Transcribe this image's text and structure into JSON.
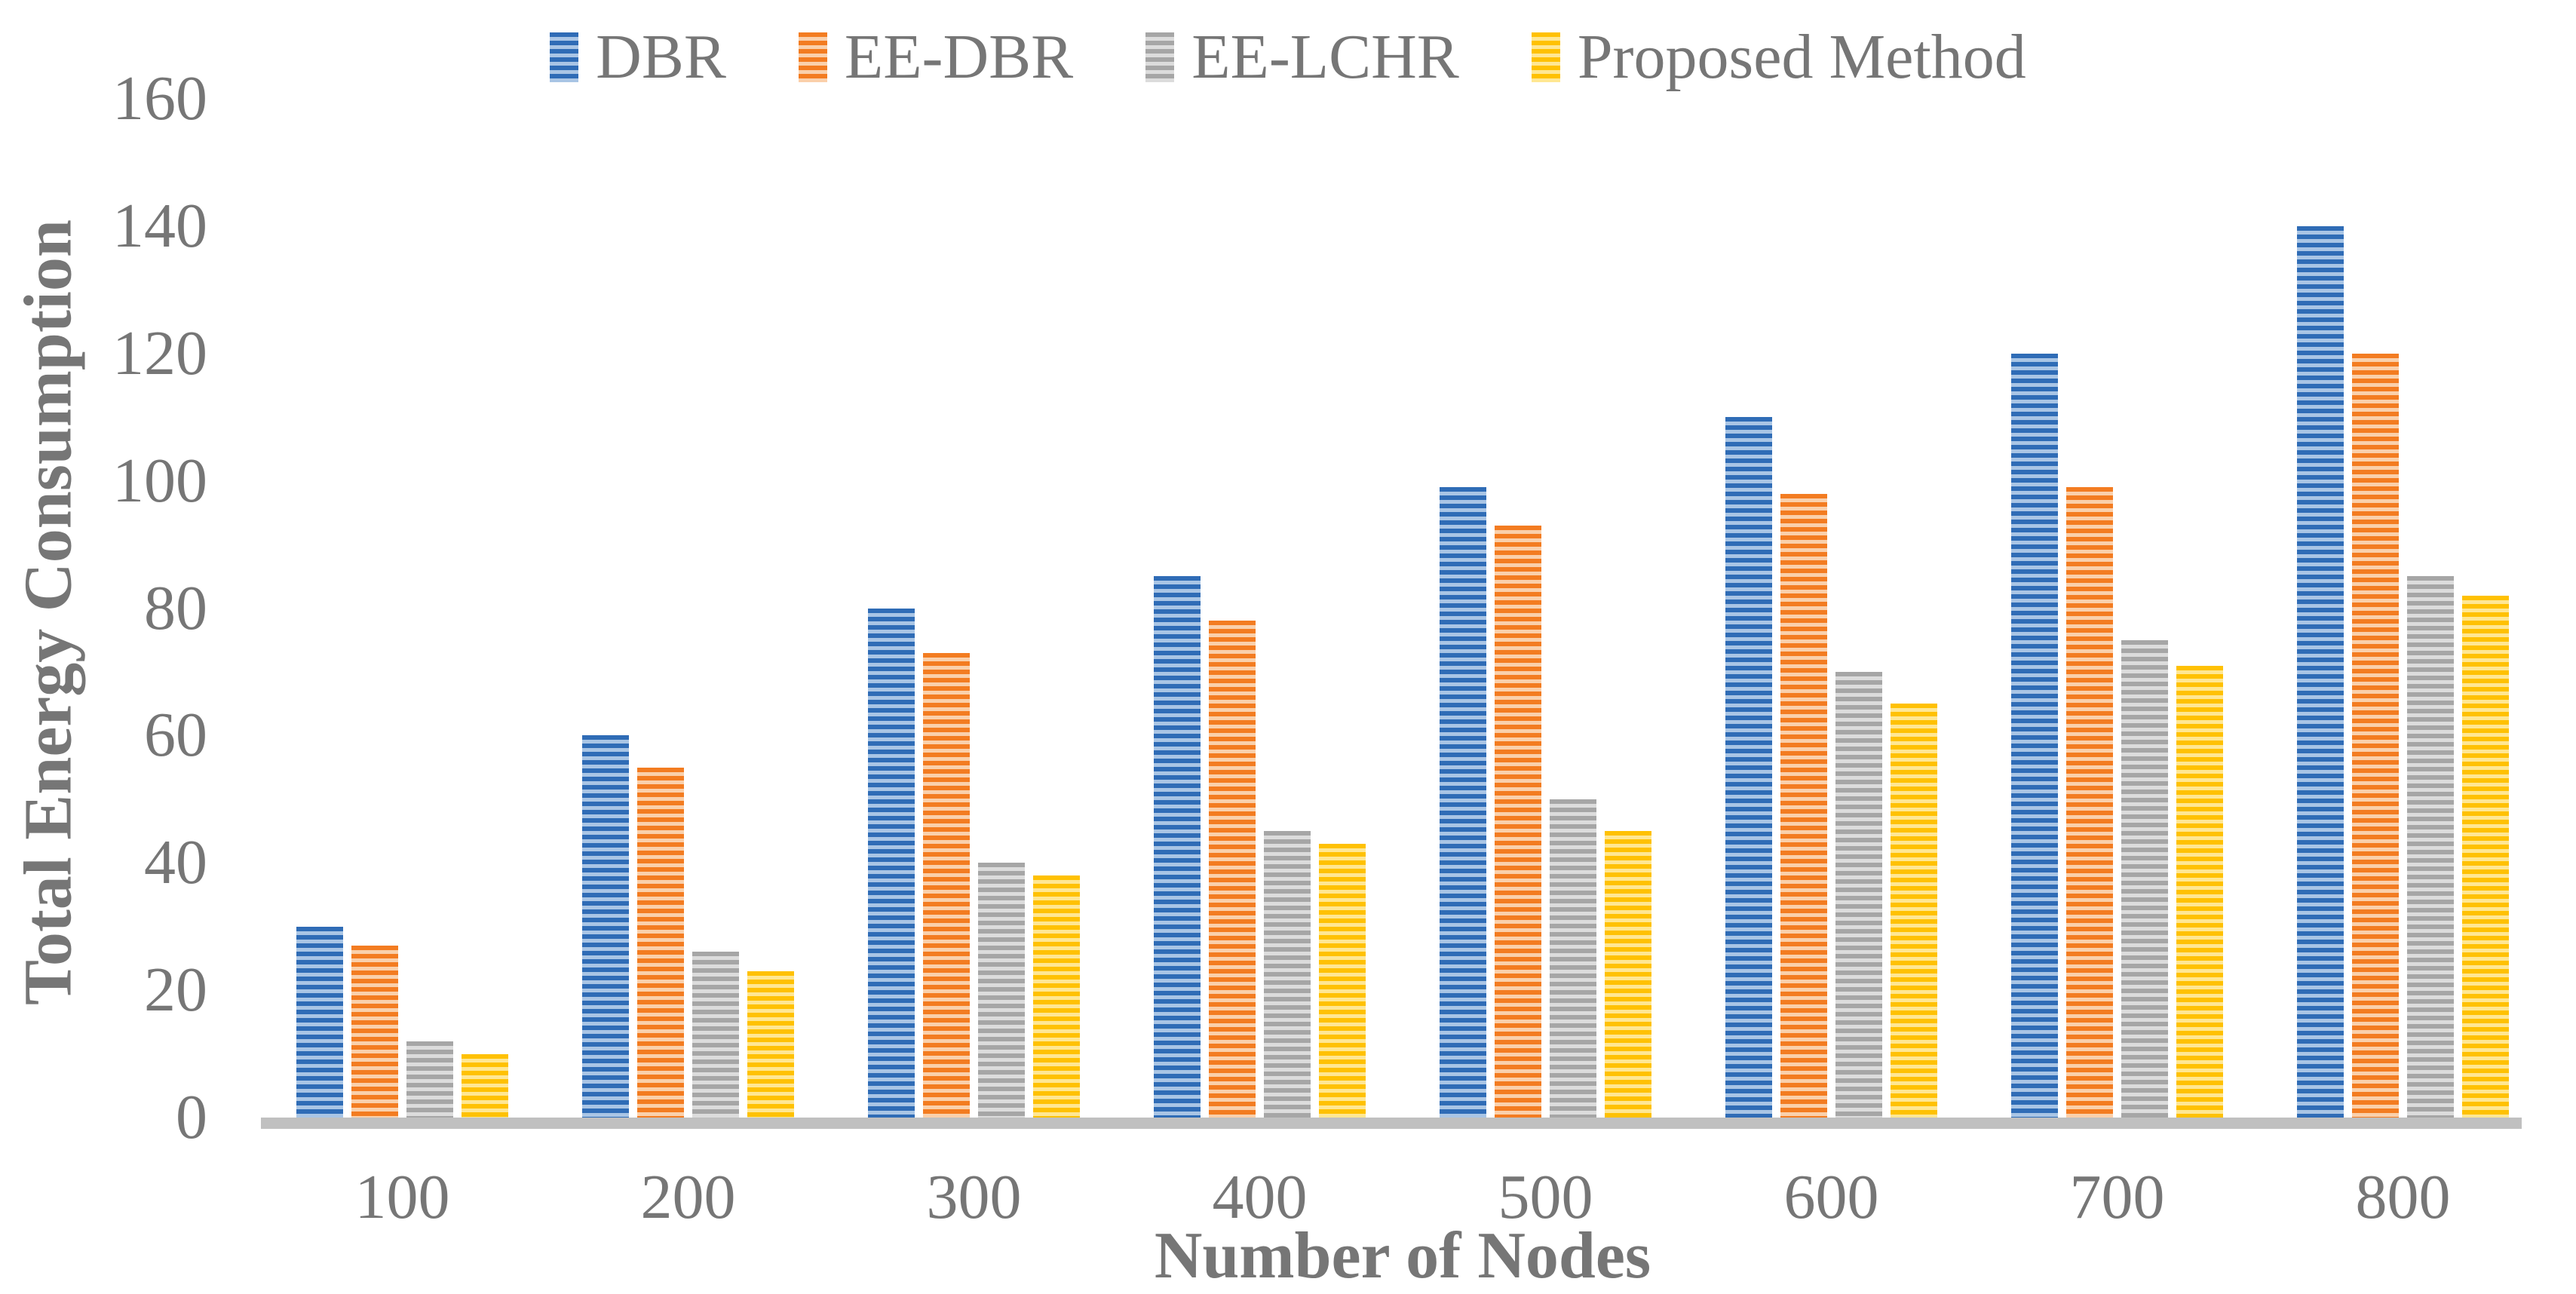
{
  "colors": {
    "text": "#767676",
    "axis_line": "#C0C0C0",
    "background": "#FFFFFF"
  },
  "chart_data": {
    "type": "bar",
    "title": "",
    "legend_position": "top",
    "grid": false,
    "categories": [
      "100",
      "200",
      "300",
      "400",
      "500",
      "600",
      "700",
      "800"
    ],
    "series": [
      {
        "name": "DBR",
        "color": "#2F6CB6",
        "color_light": "#A9C5E5",
        "pattern": "horizontal-stripes",
        "values": [
          30,
          60,
          80,
          85,
          99,
          110,
          120,
          140
        ]
      },
      {
        "name": "EE-DBR",
        "color": "#F37C21",
        "color_light": "#FAD0AB",
        "pattern": "horizontal-stripes",
        "values": [
          27,
          55,
          73,
          78,
          93,
          98,
          99,
          120
        ]
      },
      {
        "name": "EE-LCHR",
        "color": "#A6A6A6",
        "color_light": "#DCDCDC",
        "pattern": "horizontal-stripes",
        "values": [
          12,
          26,
          40,
          45,
          50,
          70,
          75,
          85
        ]
      },
      {
        "name": "Proposed Method",
        "color": "#FFC103",
        "color_light": "#FFE793",
        "pattern": "horizontal-stripes",
        "values": [
          10,
          23,
          38,
          43,
          45,
          65,
          71,
          82
        ]
      }
    ],
    "xlabel": "Number of Nodes",
    "ylabel": "Total Energy Consumption",
    "ylim": [
      0,
      160
    ],
    "ytick_step": 20,
    "yticks": [
      "0",
      "20",
      "40",
      "60",
      "80",
      "100",
      "120",
      "140",
      "160"
    ]
  }
}
